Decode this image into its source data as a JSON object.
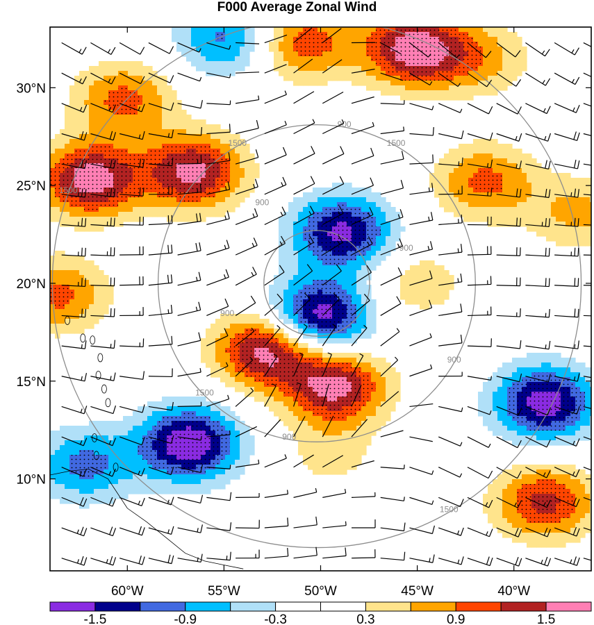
{
  "chart_data": {
    "type": "heatmap",
    "title": "F000 Average Zonal Wind",
    "xlabel": "",
    "ylabel": "",
    "x_ticks": [
      "60°W",
      "55°W",
      "50°W",
      "45°W",
      "40°W"
    ],
    "x_tick_values": [
      -60,
      -55,
      -50,
      -45,
      -40
    ],
    "y_ticks": [
      "30°N",
      "25°N",
      "20°N",
      "15°N",
      "10°N"
    ],
    "y_tick_values": [
      30,
      25,
      20,
      15,
      10
    ],
    "xlim": [
      -64.0,
      -36.0
    ],
    "ylim": [
      5.3,
      33.1
    ],
    "colorbar": {
      "labels": [
        "-1.5",
        "-0.9",
        "-0.3",
        "0.3",
        "0.9",
        "1.5"
      ],
      "label_values": [
        -1.5,
        -0.9,
        -0.3,
        0.3,
        0.9,
        1.5
      ],
      "colors": [
        "#8A2BE2",
        "#00008B",
        "#4169E1",
        "#00BFFF",
        "#B0E0F8",
        "#FFFFFF",
        "#FFFFFF",
        "#FFE48C",
        "#FFA500",
        "#FF4500",
        "#B22222",
        "#FF7FB4"
      ]
    },
    "range_ring_labels": [
      "900",
      "900",
      "900",
      "900",
      "900",
      "900",
      "1500",
      "1500",
      "1500",
      "1500",
      "1500"
    ],
    "range_ring_radii_km": [
      300,
      900,
      1500
    ],
    "range_ring_center": [
      -50.2,
      20.0
    ],
    "stipple_significance": true,
    "wind_barbs": true,
    "field_centers": [
      {
        "lon": -50.1,
        "lat": 18.3,
        "value": -1.8
      },
      {
        "lon": -48.9,
        "lat": 22.6,
        "value": -1.6
      },
      {
        "lon": -56.8,
        "lat": 11.8,
        "value": -1.8
      },
      {
        "lon": -38.4,
        "lat": 13.9,
        "value": -1.7
      },
      {
        "lon": -62.2,
        "lat": 10.7,
        "value": -1.0
      },
      {
        "lon": -54.9,
        "lat": 32.5,
        "value": -1.0
      },
      {
        "lon": -52.8,
        "lat": 16.6,
        "value": 1.7
      },
      {
        "lon": -49.2,
        "lat": 14.7,
        "value": 1.6
      },
      {
        "lon": -56.6,
        "lat": 25.7,
        "value": 1.6
      },
      {
        "lon": -61.9,
        "lat": 25.3,
        "value": 1.7
      },
      {
        "lon": -45.2,
        "lat": 32.0,
        "value": 1.7
      },
      {
        "lon": -50.9,
        "lat": 32.3,
        "value": 1.1
      },
      {
        "lon": -60.2,
        "lat": 29.4,
        "value": 1.0
      },
      {
        "lon": -38.4,
        "lat": 8.8,
        "value": 1.3
      },
      {
        "lon": -41.5,
        "lat": 25.2,
        "value": 1.0
      },
      {
        "lon": -63.6,
        "lat": 19.4,
        "value": 1.0
      },
      {
        "lon": -41.8,
        "lat": 31.5,
        "value": 0.7
      },
      {
        "lon": -45.0,
        "lat": 20.0,
        "value": 0.5
      },
      {
        "lon": -36.6,
        "lat": 23.6,
        "value": 0.7
      },
      {
        "lon": -49.5,
        "lat": 11.2,
        "value": 0.4
      }
    ]
  }
}
